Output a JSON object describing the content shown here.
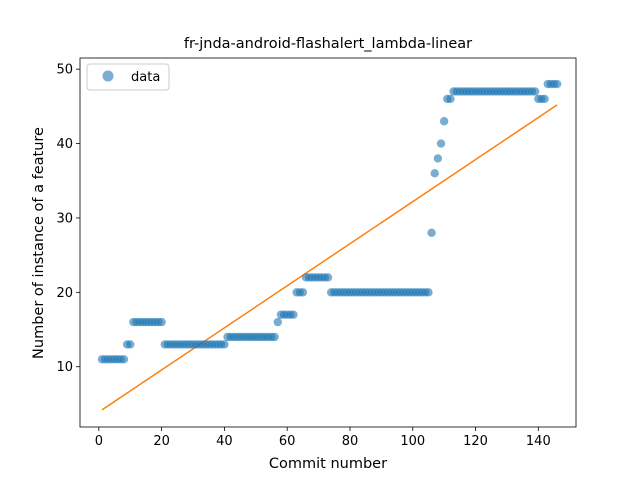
{
  "chart_data": {
    "type": "scatter",
    "title": "fr-jnda-android-flashalert_lambda-linear",
    "xlabel": "Commit number",
    "ylabel": "Number of instance of a feature",
    "xlim": [
      -6,
      152
    ],
    "ylim": [
      1.9,
      51.5
    ],
    "xticks": [
      0,
      20,
      40,
      60,
      80,
      100,
      120,
      140
    ],
    "yticks": [
      10,
      20,
      30,
      40,
      50
    ],
    "grid": false,
    "legend": {
      "position": "top-left",
      "entries": [
        "data"
      ]
    },
    "colors": {
      "data": "#1f77b4",
      "fit": "#ff7f0e"
    },
    "series": [
      {
        "name": "data",
        "marker": "circle",
        "points": [
          [
            1,
            11
          ],
          [
            2,
            11
          ],
          [
            3,
            11
          ],
          [
            4,
            11
          ],
          [
            5,
            11
          ],
          [
            6,
            11
          ],
          [
            7,
            11
          ],
          [
            8,
            11
          ],
          [
            9,
            13
          ],
          [
            10,
            13
          ],
          [
            11,
            16
          ],
          [
            12,
            16
          ],
          [
            13,
            16
          ],
          [
            14,
            16
          ],
          [
            15,
            16
          ],
          [
            16,
            16
          ],
          [
            17,
            16
          ],
          [
            18,
            16
          ],
          [
            19,
            16
          ],
          [
            20,
            16
          ],
          [
            21,
            13
          ],
          [
            22,
            13
          ],
          [
            23,
            13
          ],
          [
            24,
            13
          ],
          [
            25,
            13
          ],
          [
            26,
            13
          ],
          [
            27,
            13
          ],
          [
            28,
            13
          ],
          [
            29,
            13
          ],
          [
            30,
            13
          ],
          [
            31,
            13
          ],
          [
            32,
            13
          ],
          [
            33,
            13
          ],
          [
            34,
            13
          ],
          [
            35,
            13
          ],
          [
            36,
            13
          ],
          [
            37,
            13
          ],
          [
            38,
            13
          ],
          [
            39,
            13
          ],
          [
            40,
            13
          ],
          [
            41,
            14
          ],
          [
            42,
            14
          ],
          [
            43,
            14
          ],
          [
            44,
            14
          ],
          [
            45,
            14
          ],
          [
            46,
            14
          ],
          [
            47,
            14
          ],
          [
            48,
            14
          ],
          [
            49,
            14
          ],
          [
            50,
            14
          ],
          [
            51,
            14
          ],
          [
            52,
            14
          ],
          [
            53,
            14
          ],
          [
            54,
            14
          ],
          [
            55,
            14
          ],
          [
            56,
            14
          ],
          [
            57,
            16
          ],
          [
            58,
            17
          ],
          [
            59,
            17
          ],
          [
            60,
            17
          ],
          [
            61,
            17
          ],
          [
            62,
            17
          ],
          [
            63,
            20
          ],
          [
            64,
            20
          ],
          [
            65,
            20
          ],
          [
            66,
            22
          ],
          [
            67,
            22
          ],
          [
            68,
            22
          ],
          [
            69,
            22
          ],
          [
            70,
            22
          ],
          [
            71,
            22
          ],
          [
            72,
            22
          ],
          [
            73,
            22
          ],
          [
            74,
            20
          ],
          [
            75,
            20
          ],
          [
            76,
            20
          ],
          [
            77,
            20
          ],
          [
            78,
            20
          ],
          [
            79,
            20
          ],
          [
            80,
            20
          ],
          [
            81,
            20
          ],
          [
            82,
            20
          ],
          [
            83,
            20
          ],
          [
            84,
            20
          ],
          [
            85,
            20
          ],
          [
            86,
            20
          ],
          [
            87,
            20
          ],
          [
            88,
            20
          ],
          [
            89,
            20
          ],
          [
            90,
            20
          ],
          [
            91,
            20
          ],
          [
            92,
            20
          ],
          [
            93,
            20
          ],
          [
            94,
            20
          ],
          [
            95,
            20
          ],
          [
            96,
            20
          ],
          [
            97,
            20
          ],
          [
            98,
            20
          ],
          [
            99,
            20
          ],
          [
            100,
            20
          ],
          [
            101,
            20
          ],
          [
            102,
            20
          ],
          [
            103,
            20
          ],
          [
            104,
            20
          ],
          [
            105,
            20
          ],
          [
            106,
            28
          ],
          [
            107,
            36
          ],
          [
            108,
            38
          ],
          [
            109,
            40
          ],
          [
            110,
            43
          ],
          [
            111,
            46
          ],
          [
            112,
            46
          ],
          [
            113,
            47
          ],
          [
            114,
            47
          ],
          [
            115,
            47
          ],
          [
            116,
            47
          ],
          [
            117,
            47
          ],
          [
            118,
            47
          ],
          [
            119,
            47
          ],
          [
            120,
            47
          ],
          [
            121,
            47
          ],
          [
            122,
            47
          ],
          [
            123,
            47
          ],
          [
            124,
            47
          ],
          [
            125,
            47
          ],
          [
            126,
            47
          ],
          [
            127,
            47
          ],
          [
            128,
            47
          ],
          [
            129,
            47
          ],
          [
            130,
            47
          ],
          [
            131,
            47
          ],
          [
            132,
            47
          ],
          [
            133,
            47
          ],
          [
            134,
            47
          ],
          [
            135,
            47
          ],
          [
            136,
            47
          ],
          [
            137,
            47
          ],
          [
            138,
            47
          ],
          [
            139,
            47
          ],
          [
            140,
            46
          ],
          [
            141,
            46
          ],
          [
            142,
            46
          ],
          [
            143,
            48
          ],
          [
            144,
            48
          ],
          [
            145,
            48
          ],
          [
            146,
            48
          ]
        ]
      },
      {
        "name": "",
        "style": "line",
        "points": [
          [
            1,
            4.2
          ],
          [
            146,
            45.2
          ]
        ]
      }
    ]
  }
}
